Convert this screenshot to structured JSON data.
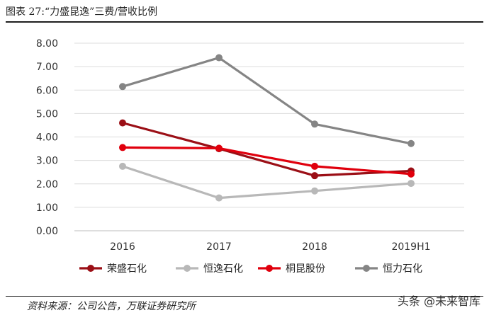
{
  "title": "图表 27:“力盛昆逸”三费/营收比例",
  "source": "资料来源：公司公告，万联证券研究所",
  "watermark": "头条 @未来智库",
  "chart_data": {
    "type": "line",
    "categories": [
      "2016",
      "2017",
      "2018",
      "2019H1"
    ],
    "ylim": [
      0,
      8
    ],
    "yticks": [
      "0.00",
      "1.00",
      "2.00",
      "3.00",
      "4.00",
      "5.00",
      "6.00",
      "7.00",
      "8.00"
    ],
    "grid": true,
    "legend_position": "bottom",
    "series": [
      {
        "name": "荣盛石化",
        "color": "#9b0f16",
        "values": [
          4.6,
          3.5,
          2.35,
          2.55
        ]
      },
      {
        "name": "恒逸石化",
        "color": "#b8b8b8",
        "values": [
          2.75,
          1.4,
          1.7,
          2.02
        ]
      },
      {
        "name": "桐昆股份",
        "color": "#e0000d",
        "values": [
          3.55,
          3.52,
          2.75,
          2.42
        ]
      },
      {
        "name": "恒力石化",
        "color": "#858585",
        "values": [
          6.15,
          7.38,
          4.55,
          3.72
        ]
      }
    ]
  }
}
